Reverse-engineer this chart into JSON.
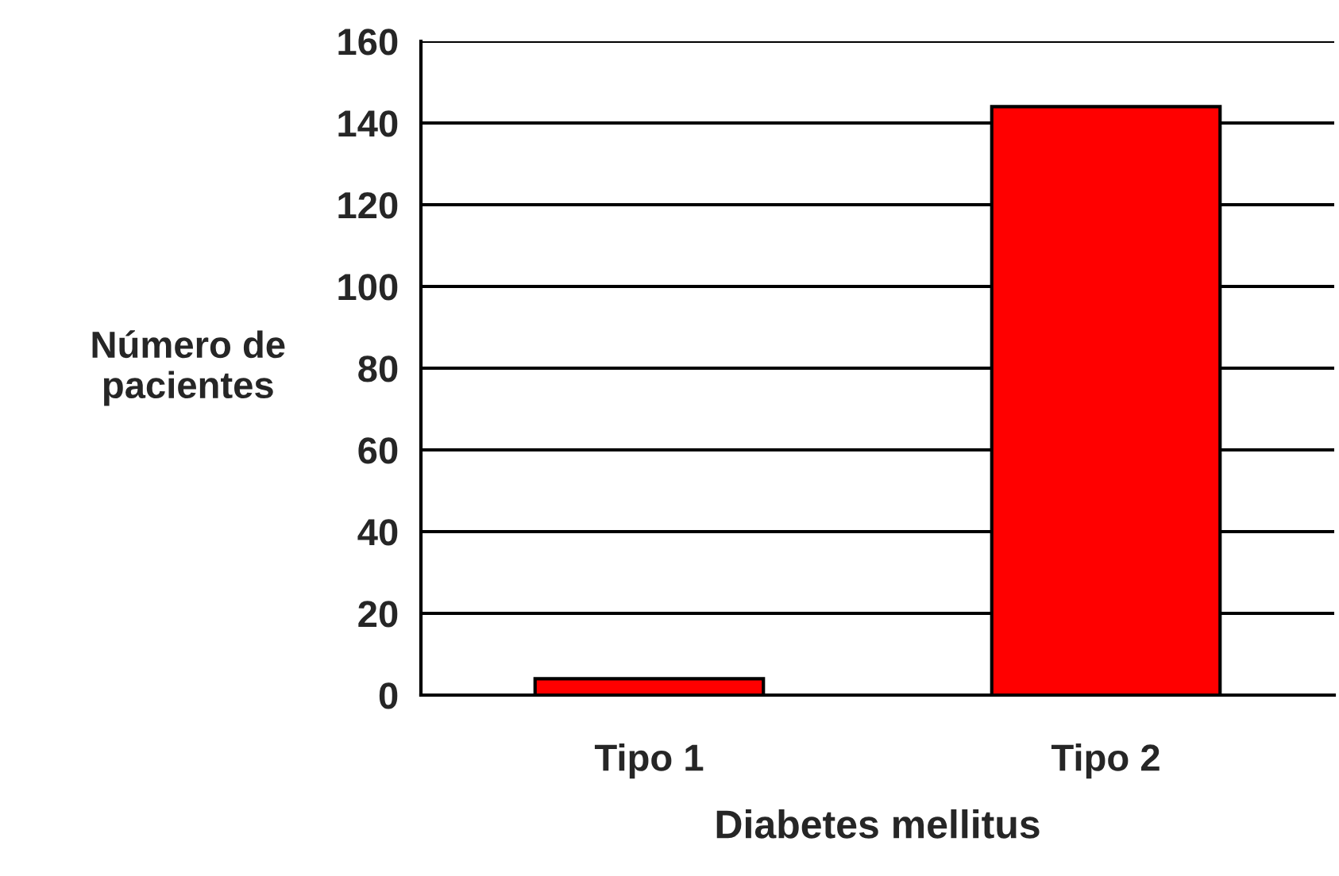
{
  "chart_data": {
    "type": "bar",
    "xlabel": "Diabetes mellitus",
    "ylabel": "Número de\npacientes",
    "categories": [
      "Tipo 1",
      "Tipo 2"
    ],
    "values": [
      4,
      144
    ],
    "color": "#ff0000",
    "ylim": [
      0,
      160
    ],
    "yticks": [
      0,
      20,
      40,
      60,
      80,
      100,
      120,
      140,
      160
    ],
    "grid": "y"
  }
}
